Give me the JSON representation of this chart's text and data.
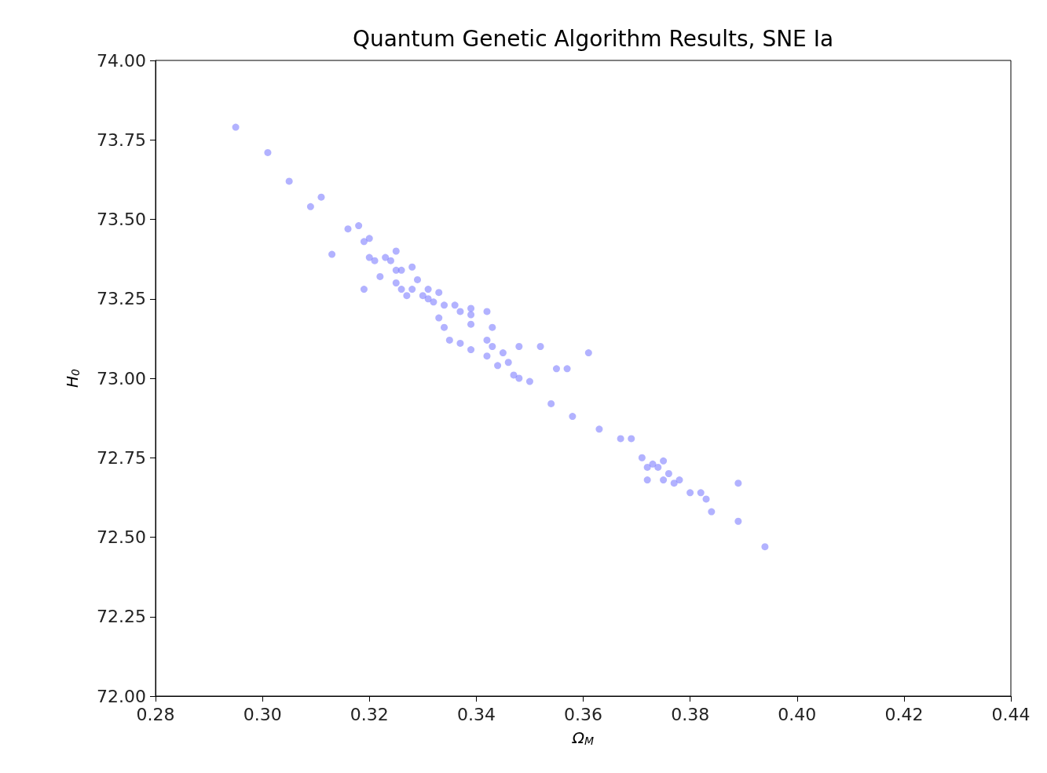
{
  "chart_data": {
    "type": "scatter",
    "title": "Quantum Genetic Algorithm Results, SNE Ia",
    "xlabel": "Ω$_{M}$",
    "ylabel": "H$_{0}$",
    "xlim": [
      0.28,
      0.44
    ],
    "ylim": [
      72,
      74
    ],
    "xticks": [
      {
        "value": 0.28,
        "label": "0.28"
      },
      {
        "value": 0.3,
        "label": "0.30"
      },
      {
        "value": 0.32,
        "label": "0.32"
      },
      {
        "value": 0.34,
        "label": "0.34"
      },
      {
        "value": 0.36,
        "label": "0.36"
      },
      {
        "value": 0.38,
        "label": "0.38"
      },
      {
        "value": 0.4,
        "label": "0.40"
      },
      {
        "value": 0.42,
        "label": "0.42"
      },
      {
        "value": 0.44,
        "label": "0.44"
      }
    ],
    "yticks": [
      {
        "value": 72,
        "label": "72.00"
      },
      {
        "value": 72.25,
        "label": "72.25"
      },
      {
        "value": 72.5,
        "label": "72.50"
      },
      {
        "value": 72.75,
        "label": "72.75"
      },
      {
        "value": 73,
        "label": "73.00"
      },
      {
        "value": 73.25,
        "label": "73.25"
      },
      {
        "value": 73.5,
        "label": "73.50"
      },
      {
        "value": 73.75,
        "label": "73.75"
      },
      {
        "value": 74,
        "label": "74.00"
      }
    ],
    "grid": false,
    "marker": "circle",
    "series": [
      {
        "color": "#7f7fff",
        "x": [
          0.295,
          0.301,
          0.305,
          0.309,
          0.311,
          0.316,
          0.318,
          0.32,
          0.319,
          0.313,
          0.319,
          0.32,
          0.321,
          0.323,
          0.324,
          0.325,
          0.325,
          0.326,
          0.322,
          0.325,
          0.328,
          0.326,
          0.328,
          0.327,
          0.33,
          0.331,
          0.331,
          0.329,
          0.333,
          0.332,
          0.334,
          0.336,
          0.337,
          0.339,
          0.342,
          0.339,
          0.339,
          0.333,
          0.334,
          0.335,
          0.337,
          0.339,
          0.342,
          0.343,
          0.342,
          0.343,
          0.345,
          0.344,
          0.346,
          0.348,
          0.352,
          0.355,
          0.357,
          0.361,
          0.347,
          0.348,
          0.35,
          0.354,
          0.358,
          0.363,
          0.367,
          0.369,
          0.371,
          0.372,
          0.373,
          0.374,
          0.375,
          0.372,
          0.375,
          0.376,
          0.377,
          0.378,
          0.38,
          0.382,
          0.383,
          0.384,
          0.389,
          0.389,
          0.394
        ],
        "values": [
          73.79,
          73.71,
          73.62,
          73.54,
          73.57,
          73.47,
          73.48,
          73.44,
          73.43,
          73.39,
          73.28,
          73.38,
          73.37,
          73.38,
          73.37,
          73.4,
          73.34,
          73.34,
          73.32,
          73.3,
          73.35,
          73.28,
          73.28,
          73.26,
          73.26,
          73.25,
          73.28,
          73.31,
          73.27,
          73.24,
          73.23,
          73.23,
          73.21,
          73.22,
          73.21,
          73.2,
          73.17,
          73.19,
          73.16,
          73.12,
          73.11,
          73.09,
          73.12,
          73.16,
          73.07,
          73.1,
          73.08,
          73.04,
          73.05,
          73.1,
          73.1,
          73.03,
          73.03,
          73.08,
          73.01,
          73.0,
          72.99,
          72.92,
          72.88,
          72.84,
          72.81,
          72.81,
          72.75,
          72.72,
          72.73,
          72.72,
          72.74,
          72.68,
          72.68,
          72.7,
          72.67,
          72.68,
          72.64,
          72.64,
          72.62,
          72.58,
          72.55,
          72.67,
          72.47
        ]
      }
    ]
  }
}
